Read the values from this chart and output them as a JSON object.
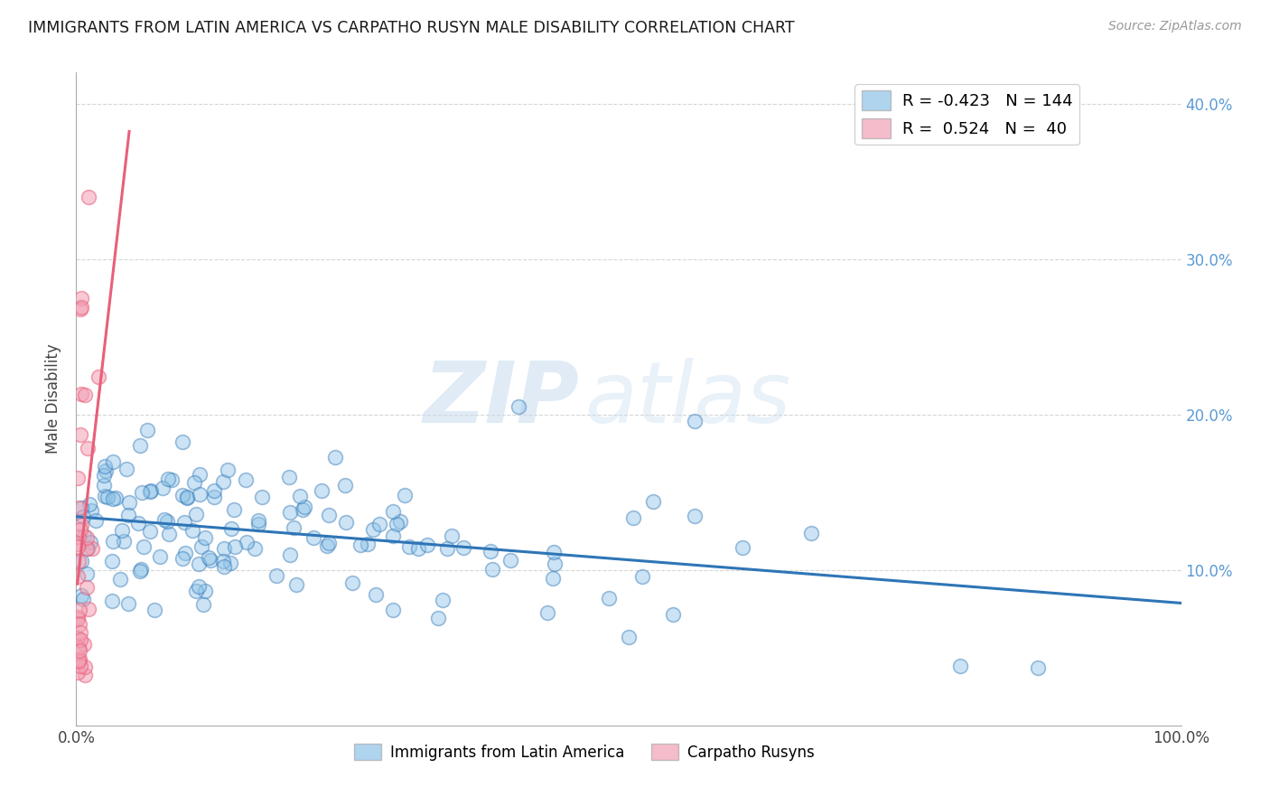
{
  "title": "IMMIGRANTS FROM LATIN AMERICA VS CARPATHO RUSYN MALE DISABILITY CORRELATION CHART",
  "source": "Source: ZipAtlas.com",
  "ylabel_left": "Male Disability",
  "legend_labels": [
    "Immigrants from Latin America",
    "Carpatho Rusyns"
  ],
  "blue_R": -0.423,
  "blue_N": 144,
  "pink_R": 0.524,
  "pink_N": 40,
  "blue_color": "#8DC3E8",
  "pink_color": "#F2A0B5",
  "blue_line_color": "#2E75B6",
  "pink_line_color": "#E8607A",
  "xlim": [
    0.0,
    1.0
  ],
  "ylim": [
    0.0,
    0.42
  ],
  "ytick_right_vals": [
    0.1,
    0.2,
    0.3,
    0.4
  ],
  "ytick_right_labels": [
    "10.0%",
    "20.0%",
    "30.0%",
    "40.0%"
  ],
  "xtick_vals": [
    0.0,
    0.25,
    0.5,
    0.75,
    1.0
  ],
  "xtick_labels": [
    "0.0%",
    "",
    "",
    "",
    "100.0%"
  ],
  "watermark_zip": "ZIP",
  "watermark_atlas": "atlas",
  "background_color": "#FFFFFF",
  "grid_color": "#CCCCCC",
  "axis_color": "#AAAAAA"
}
